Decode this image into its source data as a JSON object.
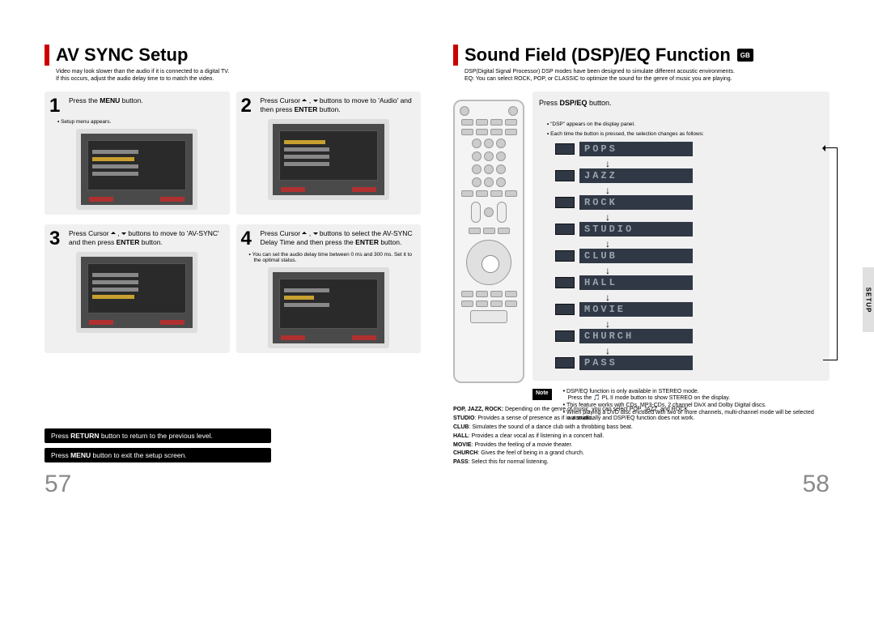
{
  "left": {
    "title": "AV SYNC Setup",
    "subtitle": "Video may look slower than the audio if it is connected to a digital TV.\nIf this occurs, adjust the audio delay time to to match the video.",
    "steps": [
      {
        "num": "1",
        "text": "Press the <b>MENU</b> button.",
        "bullet": "Setup menu appears."
      },
      {
        "num": "2",
        "text": "Press Cursor <span class='tri up'></span> , <span class='tri dn'></span> buttons to move to 'Audio' and then press <b>ENTER</b> button."
      },
      {
        "num": "3",
        "text": "Press Cursor <span class='tri up'></span> , <span class='tri dn'></span> buttons to move to 'AV-SYNC' and then press <b>ENTER</b> button."
      },
      {
        "num": "4",
        "text": "Press Cursor <span class='tri up'></span> , <span class='tri dn'></span> buttons to select the AV-SYNC Delay Time  and then press the <b>ENTER</b> button.",
        "bullet": "You can set the audio delay time between 0 ms and 300 ms. Set it to the optimal status."
      }
    ],
    "tip_return": "Press <b>RETURN</b> button to return to the previous level.",
    "tip_menu": "Press <b>MENU</b> button to exit the setup screen.",
    "page_num": "57"
  },
  "right": {
    "title": "Sound Field (DSP)/EQ Function",
    "badge": "GB",
    "subtitle": "DSP(Digital Signal Processor) DSP modes have been designed to simulate different acoustic environments.\nEQ: You can select ROCK, POP, or CLASSIC to optimize the sound for the genre of music you are playing.",
    "instruction": "Press <b>DSP/EQ</b> button.",
    "bullets": [
      "\"DSP\" appears on the display panel.",
      "Each time the button is pressed, the selection changes as follows:"
    ],
    "modes": [
      "POPS",
      "JAZZ",
      "ROCK",
      "STUDIO",
      "CLUB",
      "HALL",
      "MOVIE",
      "CHURCH",
      "PASS"
    ],
    "note_label": "Note",
    "notes": [
      "DSP/EQ function is only available in STEREO mode.\nPress the 🎵 PL II mode button to show STEREO on the display.",
      "This feature works with CDs, MP3-CDs, 2 channel DivX and Dolby Digital discs.",
      "When playing a DVD disc encoded with two or more channels, multi-channel mode will be selected automatically and DSP/EQ function does not work."
    ],
    "side_tab": "SETUP",
    "descriptions": [
      "<b>POP, JAZZ, ROCK:</b> Depending on the genre of music, you can select POP, JAZZ, and ROCK.",
      "<b>STUDIO</b>: Provides a sense of presence as if in a studio.",
      "<b>CLUB</b>: Simulates the sound of a dance club with a throbbing bass beat.",
      "<b>HALL</b>: Provides a clear vocal as if listening in a concert hall.",
      "<b>MOVIE</b>: Provides the feeling of a movie theater.",
      "<b>CHURCH</b>: Gives the feel of being in a grand church.",
      "<b>PASS</b>: Select this for normal listening."
    ],
    "page_num": "58"
  },
  "colors": {
    "accent_red": "#c00",
    "step_bg": "#f0f0f0",
    "page_num_color": "#8a8a8a",
    "mode_bg": "#303845",
    "mode_fg": "#9aa5b0"
  }
}
